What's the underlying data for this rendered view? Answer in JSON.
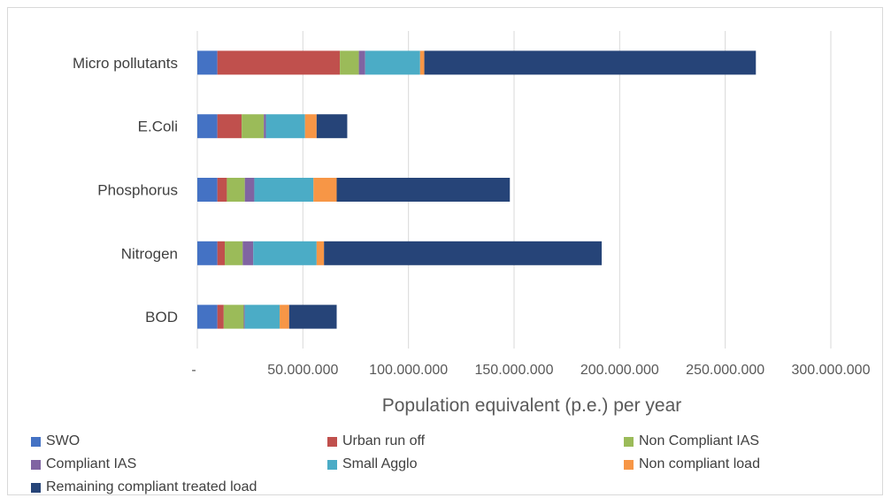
{
  "chart_data": {
    "type": "bar",
    "orientation": "horizontal",
    "stacked": true,
    "categories": [
      "Micro pollutants",
      "E.Coli",
      "Phosphorus",
      "Nitrogen",
      "BOD"
    ],
    "series": [
      {
        "name": "SWO",
        "color": "#4472C4",
        "values": [
          9500000,
          9500000,
          9500000,
          9500000,
          9500000
        ]
      },
      {
        "name": "Urban run off",
        "color": "#C0504D",
        "values": [
          58000000,
          11500000,
          4500000,
          3500000,
          3000000
        ]
      },
      {
        "name": "Non Compliant IAS",
        "color": "#9BBB59",
        "values": [
          9000000,
          10500000,
          8500000,
          8500000,
          9500000
        ]
      },
      {
        "name": "Compliant IAS",
        "color": "#8064A2",
        "values": [
          3000000,
          1000000,
          4500000,
          5000000,
          500000
        ]
      },
      {
        "name": "Small Agglo",
        "color": "#4BACC6",
        "values": [
          26000000,
          18500000,
          28000000,
          30000000,
          16500000
        ]
      },
      {
        "name": "Non compliant load",
        "color": "#F79646",
        "values": [
          2000000,
          5500000,
          11000000,
          3500000,
          4500000
        ]
      },
      {
        "name": "Remaining compliant treated load",
        "color": "#264478",
        "values": [
          157000000,
          14500000,
          82000000,
          131500000,
          22500000
        ]
      }
    ],
    "xlim": [
      0,
      300000000
    ],
    "x_ticks": [
      0,
      50000000,
      100000000,
      150000000,
      200000000,
      250000000,
      300000000
    ],
    "x_tick_labels": [
      "-",
      "50.000.000",
      "100.000.000",
      "150.000.000",
      "200.000.000",
      "250.000.000",
      "300.000.000"
    ],
    "xlabel": "Population equivalent (p.e.) per year",
    "ylabel": "",
    "title": "",
    "grid": "vertical",
    "legend_position": "bottom"
  }
}
